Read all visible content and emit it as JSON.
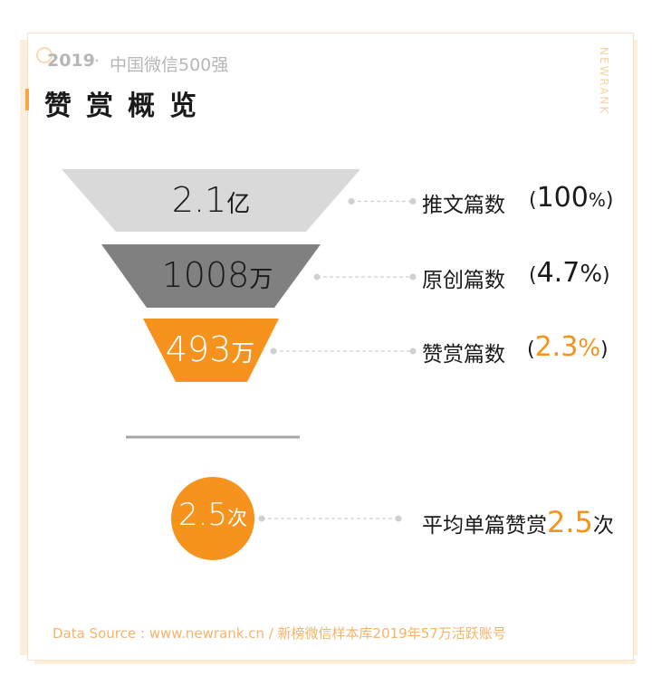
{
  "header": {
    "year": "2019",
    "dot": "·",
    "subtitle": "中国微信500强",
    "title": "赞赏概览",
    "brand": "NEWRANK"
  },
  "chart_data": {
    "type": "funnel",
    "stages": [
      {
        "label": "推文篇数",
        "value": 2.1,
        "unit": "亿",
        "display": "2.1",
        "pct": "100%",
        "pct_num": "100",
        "color": "#d9d9d9",
        "text_color": "#1a1a1a",
        "pct_color": "#1a1a1a"
      },
      {
        "label": "原创篇数",
        "value": 1008,
        "unit": "万",
        "display": "1008",
        "pct": "4.7%",
        "pct_num": "4.7",
        "color": "#808080",
        "text_color": "#1a1a1a",
        "pct_color": "#1a1a1a"
      },
      {
        "label": "赞赏篇数",
        "value": 493,
        "unit": "万",
        "display": "493",
        "pct": "2.3%",
        "pct_num": "2.3",
        "color": "#f6921e",
        "text_color": "#ffffff",
        "pct_color": "#f6921e"
      }
    ],
    "average": {
      "display": "2.5",
      "unit": "次",
      "value": 2.5,
      "prefix": "平均单篇赞赏",
      "suffix": "次",
      "color": "#f6921e"
    }
  },
  "footer": "Data Source : www.newrank.cn  /   新榜微信样本库2019年57万活跃账号"
}
